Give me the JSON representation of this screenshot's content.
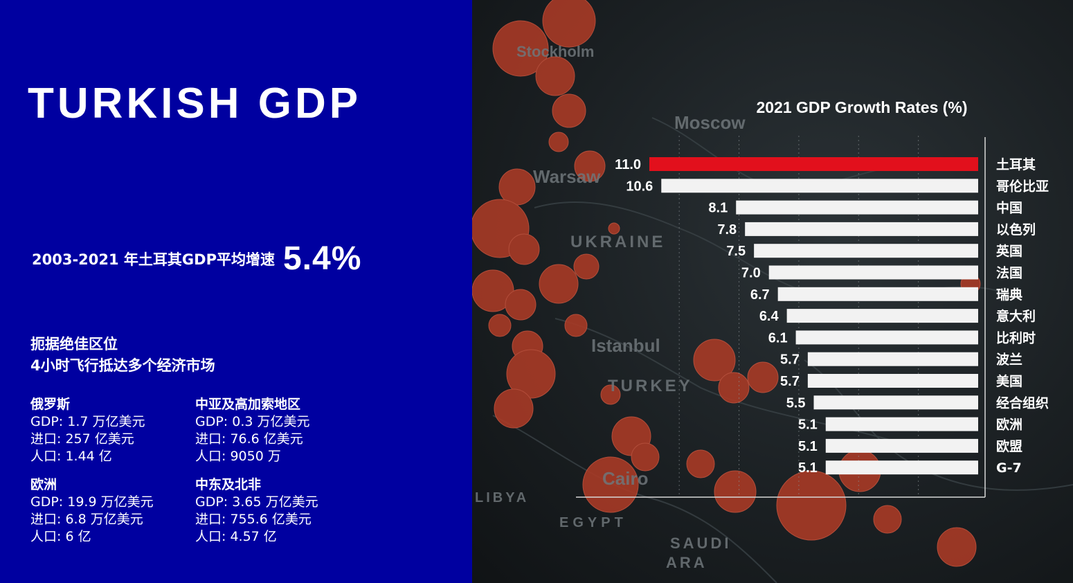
{
  "left": {
    "title": "TURKISH GDP",
    "avg_label": "2003-2021 年土耳其GDP平均增速",
    "avg_value": "5.4%",
    "location_lines": [
      "扼据绝佳区位",
      "4小时飞行抵达多个经济市场"
    ],
    "markets": [
      {
        "name": "俄罗斯",
        "gdp": "GDP: 1.7 万亿美元",
        "imports": "进口: 257 亿美元",
        "population": "人口: 1.44 亿"
      },
      {
        "name": "中亚及高加索地区",
        "gdp": "GDP: 0.3 万亿美元",
        "imports": "进口: 76.6 亿美元",
        "population": "人口: 9050 万"
      },
      {
        "name": "欧洲",
        "gdp": "GDP: 19.9 万亿美元",
        "imports": "进口: 6.8 万亿美元",
        "population": "人口: 6 亿"
      },
      {
        "name": "中东及北非",
        "gdp": "GDP: 3.65 万亿美元",
        "imports": "进口: 755.6 亿美元",
        "population": "人口: 4.57 亿"
      }
    ]
  },
  "map_labels": [
    "Stockholm",
    "Moscow",
    "Warsaw",
    "UKRAINE",
    "Istanbul",
    "TURKEY",
    "Cairo",
    "LIBYA",
    "EGYPT",
    "SAUDI",
    "ARA"
  ],
  "colors": {
    "left_bg": "#0000a0",
    "highlight_bar": "#e2101c",
    "bar": "#f2f2f2",
    "dot": "#a83a26"
  },
  "chart_data": {
    "type": "bar",
    "orientation": "horizontal",
    "title": "2021 GDP Growth Rates (%)",
    "categories": [
      "土耳其",
      "哥伦比亚",
      "中国",
      "以色列",
      "英国",
      "法国",
      "瑞典",
      "意大利",
      "比利时",
      "波兰",
      "美国",
      "经合组织",
      "欧洲",
      "欧盟",
      "G-7"
    ],
    "values": [
      11.0,
      10.6,
      8.1,
      7.8,
      7.5,
      7.0,
      6.7,
      6.4,
      6.1,
      5.7,
      5.7,
      5.5,
      5.1,
      5.1,
      5.1
    ],
    "value_labels": [
      "11.0",
      "10.6",
      "8.1",
      "7.8",
      "7.5",
      "7.0",
      "6.7",
      "6.4",
      "6.1",
      "5.7",
      "5.7",
      "5.5",
      "5.1",
      "5.1",
      "5.1"
    ],
    "highlight_index": 0,
    "xlim": [
      0,
      13
    ],
    "grid": true
  }
}
